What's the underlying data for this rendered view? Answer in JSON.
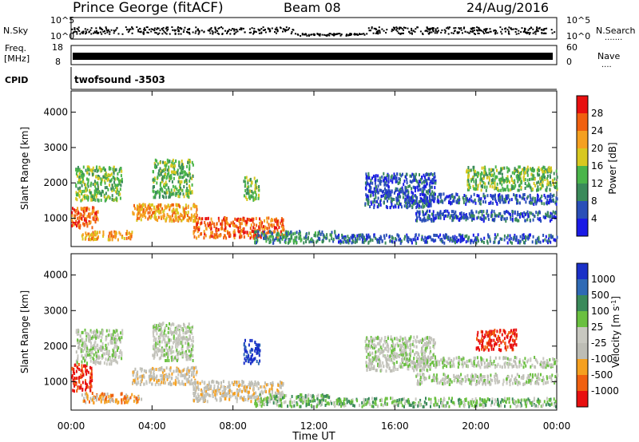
{
  "header": {
    "title": "Prince George (fitACF)",
    "beam": "Beam 08",
    "date": "24/Aug/2016"
  },
  "strips": {
    "nsky": {
      "label": "N.Sky",
      "left_ticks": [
        "10^5",
        "10^0"
      ],
      "right_ticks": [
        "10^5",
        "10^0"
      ],
      "right_label": "N.Search",
      "right_value": "......."
    },
    "freq": {
      "label_line1": "Freq.",
      "label_line2": "[MHz]",
      "left_ticks": [
        "18",
        "8"
      ],
      "right_ticks": [
        "60",
        "0"
      ],
      "right_label": "Nave",
      "right_value": "...."
    },
    "cpid": {
      "label": "CPID",
      "program": "twofsound -3503"
    }
  },
  "colors": {
    "power_scale": [
      "#1a1ae6",
      "#2a4fb8",
      "#3a8a5a",
      "#4ab54a",
      "#d8c820",
      "#f5a020",
      "#f06010",
      "#e81010"
    ],
    "velocity_scale": [
      "#1a30c8",
      "#2f6ab5",
      "#3a8a5a",
      "#6ac040",
      "#c8c8c0",
      "#bdbdb5",
      "#f5a020",
      "#f06010",
      "#e81010"
    ]
  },
  "chart_data": [
    {
      "type": "heatmap",
      "name": "power",
      "xlabel": "Time UT",
      "ylabel": "Slant Range [km]",
      "ylim": [
        200,
        4600
      ],
      "xlim": [
        "00:00",
        "24:00"
      ],
      "y_ticks": [
        "1000",
        "2000",
        "3000",
        "4000"
      ],
      "colorbar_label": "Power [dB]",
      "colorbar_ticks": [
        "4",
        "8",
        "12",
        "16",
        "20",
        "24",
        "28"
      ],
      "regions": [
        {
          "t0": 0.0,
          "t1": 1.3,
          "r0": 700,
          "r1": 1300,
          "level": 6
        },
        {
          "t0": 0.5,
          "t1": 3.0,
          "r0": 350,
          "r1": 600,
          "level": 5
        },
        {
          "t0": 0.2,
          "t1": 2.5,
          "r0": 1500,
          "r1": 2500,
          "level": 3
        },
        {
          "t0": 3.0,
          "t1": 6.2,
          "r0": 900,
          "r1": 1400,
          "level": 5
        },
        {
          "t0": 4.0,
          "t1": 6.0,
          "r0": 1600,
          "r1": 2700,
          "level": 3
        },
        {
          "t0": 6.0,
          "t1": 10.5,
          "r0": 400,
          "r1": 1000,
          "level": 6
        },
        {
          "t0": 8.5,
          "t1": 9.3,
          "r0": 1500,
          "r1": 2200,
          "level": 3
        },
        {
          "t0": 9.0,
          "t1": 13.0,
          "r0": 250,
          "r1": 600,
          "level": 2
        },
        {
          "t0": 14.5,
          "t1": 18.0,
          "r0": 1300,
          "r1": 2300,
          "level": 1
        },
        {
          "t0": 16.5,
          "t1": 24.0,
          "r0": 1400,
          "r1": 1700,
          "level": 1
        },
        {
          "t0": 17.0,
          "t1": 24.0,
          "r0": 900,
          "r1": 1200,
          "level": 1
        },
        {
          "t0": 19.5,
          "t1": 24.0,
          "r0": 1800,
          "r1": 2500,
          "level": 3
        },
        {
          "t0": 13.0,
          "t1": 24.0,
          "r0": 250,
          "r1": 500,
          "level": 1
        }
      ]
    },
    {
      "type": "heatmap",
      "name": "velocity",
      "xlabel": "Time UT",
      "ylabel": "Slant Range [km]",
      "ylim": [
        200,
        4600
      ],
      "xlim": [
        "00:00",
        "24:00"
      ],
      "y_ticks": [
        "1000",
        "2000",
        "3000",
        "4000"
      ],
      "colorbar_label": "Velocity [m s^-1]",
      "colorbar_ticks": [
        "1000",
        "500",
        "100",
        "25",
        "-25",
        "-100",
        "-500",
        "-1000"
      ],
      "regions": [
        {
          "t0": 0.0,
          "t1": 1.0,
          "r0": 700,
          "r1": 1500,
          "level": 8
        },
        {
          "t0": 0.5,
          "t1": 3.5,
          "r0": 350,
          "r1": 650,
          "level": 6
        },
        {
          "t0": 0.2,
          "t1": 2.5,
          "r0": 1500,
          "r1": 2500,
          "level": 4
        },
        {
          "t0": 3.0,
          "t1": 6.2,
          "r0": 900,
          "r1": 1400,
          "level": 5
        },
        {
          "t0": 4.0,
          "t1": 6.0,
          "r0": 1600,
          "r1": 2700,
          "level": 4
        },
        {
          "t0": 6.0,
          "t1": 10.5,
          "r0": 400,
          "r1": 1000,
          "level": 5
        },
        {
          "t0": 8.5,
          "t1": 9.3,
          "r0": 1500,
          "r1": 2200,
          "level": 0
        },
        {
          "t0": 9.0,
          "t1": 13.0,
          "r0": 250,
          "r1": 600,
          "level": 3
        },
        {
          "t0": 14.5,
          "t1": 18.0,
          "r0": 1300,
          "r1": 2300,
          "level": 4
        },
        {
          "t0": 16.5,
          "t1": 24.0,
          "r0": 1400,
          "r1": 1700,
          "level": 4
        },
        {
          "t0": 17.0,
          "t1": 24.0,
          "r0": 900,
          "r1": 1200,
          "level": 4
        },
        {
          "t0": 20.0,
          "t1": 22.0,
          "r0": 1900,
          "r1": 2500,
          "level": 8
        },
        {
          "t0": 13.0,
          "t1": 24.0,
          "r0": 250,
          "r1": 500,
          "level": 3
        }
      ]
    }
  ],
  "time_ticks": [
    "00:00",
    "04:00",
    "08:00",
    "12:00",
    "16:00",
    "20:00",
    "00:00"
  ]
}
